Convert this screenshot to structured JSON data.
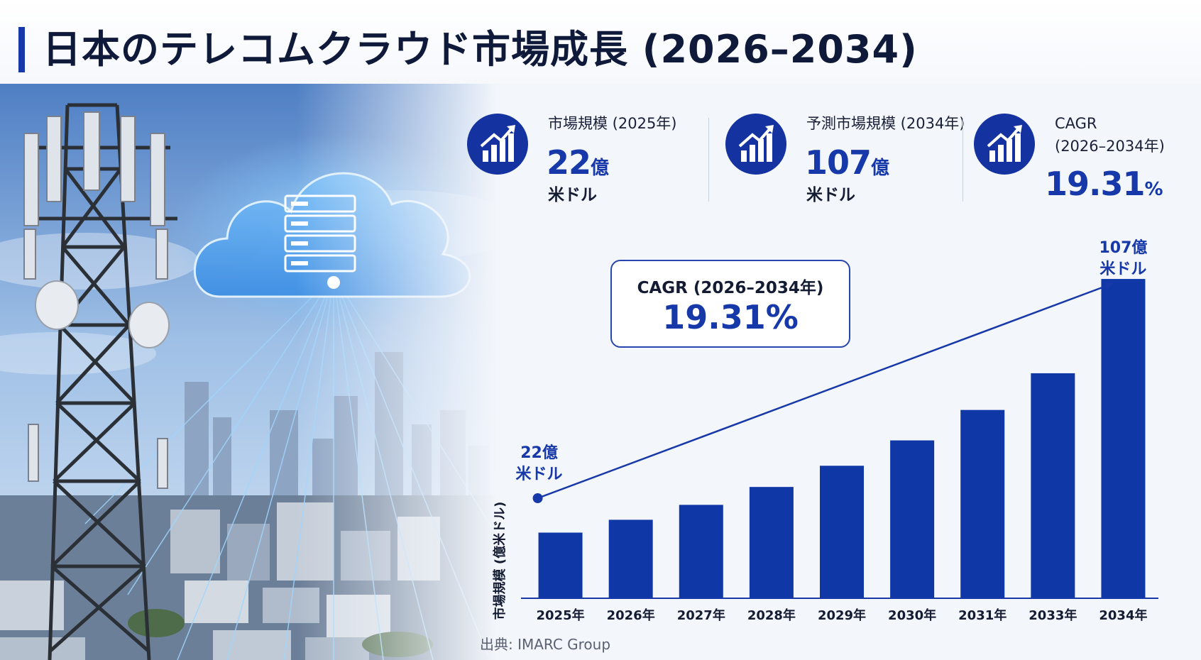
{
  "title": "日本のテレコムクラウド市場成長 (2026–2034)",
  "kpis": [
    {
      "label": "市場規模 (2025年)",
      "value": "22",
      "unit": "億",
      "sub": "米ドル",
      "icon": "growth-chart-icon"
    },
    {
      "label": "予測市場規模 (2034年)",
      "value": "107",
      "unit": "億",
      "sub": "米ドル",
      "icon": "growth-chart-icon"
    },
    {
      "label": "CAGR",
      "label2": "(2026–2034年)",
      "value": "19.31",
      "unit": "%",
      "icon": "growth-chart-icon"
    }
  ],
  "callout": {
    "label": "CAGR (2026–2034年)",
    "value": "19.31%"
  },
  "source": "出典: IMARC Group",
  "colors": {
    "accent": "#1638a8",
    "bar": "#0f38a6",
    "text": "#141c33"
  },
  "chart_data": {
    "type": "bar",
    "categories": [
      "2025年",
      "2026年",
      "2027年",
      "2028年",
      "2029年",
      "2030年",
      "2031年",
      "2033年",
      "2034年"
    ],
    "values": [
      22,
      26.3,
      31.3,
      37.3,
      44.4,
      52.9,
      63.1,
      75.4,
      107
    ],
    "ylabel": "市場規模 (億米ドル)",
    "ylim": [
      0,
      122
    ],
    "start_annotation": {
      "line1": "22億",
      "line2": "米ドル"
    },
    "end_annotation": {
      "line1": "107億",
      "line2": "米ドル"
    },
    "trend_arrow": true,
    "grid": false,
    "legend": "none"
  }
}
